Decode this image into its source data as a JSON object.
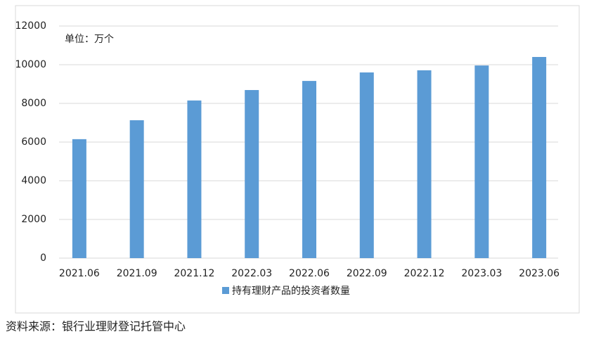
{
  "chart_data": {
    "type": "bar",
    "annotation": "单位：万个",
    "categories": [
      "2021.06",
      "2021.09",
      "2021.12",
      "2022.03",
      "2022.06",
      "2022.09",
      "2022.12",
      "2023.03",
      "2023.06"
    ],
    "series": [
      {
        "name": "持有理财产品的投资者数量",
        "color": "#5b9bd5",
        "values": [
          6150,
          7130,
          8150,
          8690,
          9160,
          9600,
          9710,
          9960,
          10400
        ]
      }
    ],
    "ylim": [
      0,
      12000
    ],
    "yticks": [
      0,
      2000,
      4000,
      6000,
      8000,
      10000,
      12000
    ],
    "grid": true,
    "source": "资料来源：银行业理财登记托管中心"
  }
}
